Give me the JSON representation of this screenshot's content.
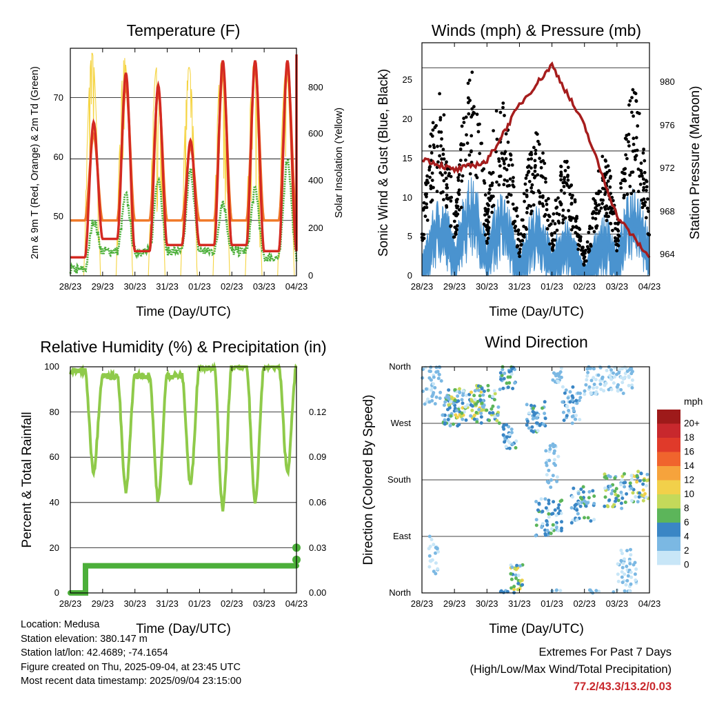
{
  "x_ticks": [
    "28/23",
    "29/23",
    "30/23",
    "31/23",
    "01/23",
    "02/23",
    "03/23",
    "04/23"
  ],
  "panels": {
    "temperature": {
      "title": "Temperature (F)",
      "xlabel": "Time (Day/UTC)",
      "ylabel_left": "2m & 9m T (Red, Orange) & 2m Td (Green)",
      "ylabel_right": "Solar Insolation (Yellow)",
      "yticks_left": [
        "50",
        "60",
        "70"
      ],
      "yticks_right": [
        "0",
        "200",
        "400",
        "600",
        "800"
      ]
    },
    "winds": {
      "title": "Winds (mph) & Pressure (mb)",
      "xlabel": "Time (Day/UTC)",
      "ylabel_left": "Sonic Wind & Gust (Blue, Black)",
      "ylabel_right": "Station Pressure (Maroon)",
      "yticks_left": [
        "0",
        "5",
        "10",
        "15",
        "20",
        "25"
      ],
      "yticks_right": [
        "964",
        "968",
        "972",
        "976",
        "980"
      ]
    },
    "humidity": {
      "title": "Relative Humidity (%) & Precipitation (in)",
      "xlabel": "Time (Day/UTC)",
      "ylabel_left": "Percent & Total Rainfall",
      "yticks_left": [
        "0",
        "20",
        "40",
        "60",
        "80",
        "100"
      ],
      "yticks_right": [
        "0.00",
        "0.03",
        "0.06",
        "0.09",
        "0.12"
      ]
    },
    "direction": {
      "title": "Wind Direction",
      "xlabel": "Time (Day/UTC)",
      "ylabel_left": "Direction (Colored By Speed)",
      "yticks_left": [
        "North",
        "East",
        "South",
        "West",
        "North"
      ],
      "legend_title": "mph",
      "legend_labels": [
        "20+",
        "18",
        "16",
        "14",
        "12",
        "10",
        "8",
        "6",
        "4",
        "2",
        "0"
      ],
      "legend_colors": [
        "#9e1a1a",
        "#c8282d",
        "#e03a2a",
        "#f0642d",
        "#f6a33c",
        "#f2d04a",
        "#c4d95a",
        "#5cb55a",
        "#3a86c5",
        "#7bb8e3",
        "#c8e6f7"
      ]
    }
  },
  "colors": {
    "t2m": "#d42a22",
    "t9m": "#f07a2a",
    "td2m": "#4caf3a",
    "solar": "#f5d442",
    "wind": "#4a93cf",
    "gust": "#000000",
    "pressure": "#a61d1d",
    "rh": "#8fca4a",
    "precip": "#4caf3a"
  },
  "chart_data": [
    {
      "type": "line",
      "title": "Temperature (F)",
      "xlabel": "Time (Day/UTC)",
      "ylabel": "2m & 9m T (Red, Orange) & 2m Td (Green)",
      "ylabel_right": "Solar Insolation (Yellow)",
      "x_days": [
        "28/23",
        "29/23",
        "30/23",
        "31/23",
        "01/23",
        "02/23",
        "03/23",
        "04/23"
      ],
      "ylim": [
        41,
        78
      ],
      "ylim_right": [
        0,
        960
      ],
      "series": [
        {
          "name": "2m T",
          "daily_max": [
            66,
            74,
            72,
            63,
            76,
            76,
            76,
            77
          ],
          "daily_min": [
            44,
            47,
            45,
            46,
            46,
            46,
            45
          ]
        },
        {
          "name": "9m T",
          "daily_max": [
            64,
            72,
            71,
            62,
            74,
            75,
            75,
            76
          ],
          "daily_min": [
            50,
            50,
            50,
            50,
            50,
            50,
            50
          ]
        },
        {
          "name": "2m Td",
          "daily_max": [
            50,
            54,
            57,
            58,
            53,
            55,
            60
          ],
          "daily_min": [
            42,
            45,
            45,
            45,
            45,
            45,
            44
          ]
        },
        {
          "name": "Solar Insolation",
          "daily_max": [
            940,
            920,
            880,
            880,
            900,
            890,
            860
          ]
        }
      ]
    },
    {
      "type": "scatter",
      "title": "Winds (mph) & Pressure (mb)",
      "xlabel": "Time (Day/UTC)",
      "ylabel": "Sonic Wind & Gust (Blue, Black)",
      "ylabel_right": "Station Pressure (Maroon)",
      "ylim": [
        0,
        28
      ],
      "ylim_right": [
        962,
        983
      ],
      "series": [
        {
          "name": "Sonic Wind",
          "daily_max": [
            7,
            12,
            12,
            8,
            9,
            4,
            10,
            13
          ]
        },
        {
          "name": "Gust",
          "daily_max": [
            21,
            23,
            27,
            16,
            19,
            8,
            20,
            25
          ]
        },
        {
          "name": "Station Pressure",
          "values_per_day": [
            972.6,
            971.5,
            972.3,
            977.4,
            981.0,
            975.5,
            967.4,
            963.6
          ]
        }
      ]
    },
    {
      "type": "line",
      "title": "Relative Humidity (%) & Precipitation (in)",
      "xlabel": "Time (Day/UTC)",
      "ylabel": "Percent & Total Rainfall",
      "ylim": [
        0,
        100
      ],
      "ylim_right": [
        0,
        0.15
      ],
      "series": [
        {
          "name": "Relative Humidity",
          "daily_max": [
            98,
            96,
            96,
            96,
            100,
            100,
            100
          ],
          "daily_min": [
            54,
            45,
            41,
            48,
            37,
            41,
            54
          ]
        },
        {
          "name": "Total Precipitation",
          "values_per_day": [
            0.0,
            0.018,
            0.018,
            0.018,
            0.018,
            0.018,
            0.018,
            0.03
          ]
        }
      ]
    },
    {
      "type": "scatter",
      "title": "Wind Direction",
      "xlabel": "Time (Day/UTC)",
      "ylabel": "Direction (Colored By Speed)",
      "y_categories": [
        "North",
        "East",
        "South",
        "West",
        "North"
      ],
      "colorbar_unit": "mph",
      "colorbar_levels": [
        "0",
        "2",
        "4",
        "6",
        "8",
        "10",
        "12",
        "14",
        "16",
        "18",
        "20+"
      ],
      "series": [
        {
          "name": "Direction",
          "dominant_by_day": [
            "North-West",
            "West-North",
            "West",
            "North/West",
            "West-North",
            "East-South",
            "South-East",
            "South-East"
          ]
        }
      ]
    }
  ],
  "footer": {
    "location": "Location: Medusa",
    "elevation": "Station elevation: 380.147 m",
    "latlon": "Station lat/lon: 42.4689; -74.1654",
    "created": "Figure created on Thu, 2025-09-04, at 23:45 UTC",
    "recent": "Most recent data timestamp: 2025/09/04 23:15:00"
  },
  "extremes": {
    "title": "Extremes For Past 7 Days",
    "subtitle": "(High/Low/Max Wind/Total Precipitation)",
    "values": "77.2/43.3/13.2/0.03"
  }
}
